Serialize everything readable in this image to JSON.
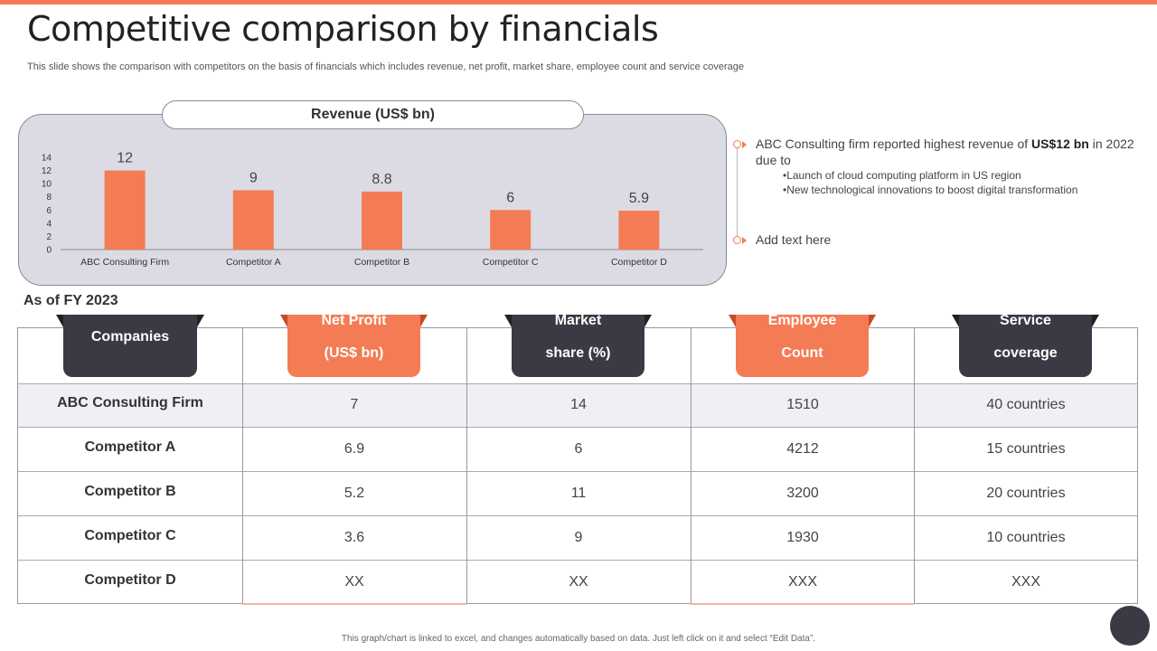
{
  "title": "Competitive comparison by financials",
  "subtitle": "This slide shows the comparison with competitors on the basis of financials which includes revenue, net profit, market share, employee count and service coverage",
  "chart_data": {
    "type": "bar",
    "title": "Revenue (US$ bn)",
    "categories": [
      "ABC Consulting Firm",
      "Competitor A",
      "Competitor B",
      "Competitor C",
      "Competitor D"
    ],
    "values": [
      12,
      9,
      8.8,
      6,
      5.9
    ],
    "value_labels": [
      "12",
      "9",
      "8.8",
      "6",
      "5.9"
    ],
    "yticks": [
      "0",
      "2",
      "4",
      "6",
      "8",
      "10",
      "12",
      "14"
    ],
    "ylim": [
      0,
      14
    ],
    "bar_color": "#f47c55",
    "xlabel": "",
    "ylabel": ""
  },
  "notes": {
    "note1_text": "ABC Consulting firm reported highest revenue of ",
    "note1_bold": "US$12 bn",
    "note1_suffix": " in 2022 due to",
    "bullets": [
      "Launch of cloud computing platform in US region",
      "New technological innovations  to boost digital transformation"
    ],
    "note2": "Add text here"
  },
  "asof": "As of FY 2023",
  "table": {
    "headers": [
      {
        "line1": "Companies",
        "line2": "",
        "style": "dark"
      },
      {
        "line1": "Net Profit",
        "line2": "(US$ bn)",
        "style": "orange"
      },
      {
        "line1": "Market",
        "line2": "share (%)",
        "style": "dark"
      },
      {
        "line1": "Employee",
        "line2": "Count",
        "style": "orange"
      },
      {
        "line1": "Service",
        "line2": "coverage",
        "style": "dark"
      }
    ],
    "rows": [
      [
        "ABC Consulting Firm",
        "7",
        "14",
        "1510",
        "40 countries"
      ],
      [
        "Competitor A",
        "6.9",
        "6",
        "4212",
        "15 countries"
      ],
      [
        "Competitor B",
        "5.2",
        "11",
        "3200",
        "20 countries"
      ],
      [
        "Competitor C",
        "3.6",
        "9",
        "1930",
        "10 countries"
      ],
      [
        "Competitor D",
        "XX",
        "XX",
        "XXX",
        "XXX"
      ]
    ]
  },
  "footer": "This graph/chart is linked to excel, and changes automatically based on data. Just left click on it and select “Edit Data”.",
  "colors": {
    "accent": "#f47c55",
    "dark": "#3b3a44"
  }
}
